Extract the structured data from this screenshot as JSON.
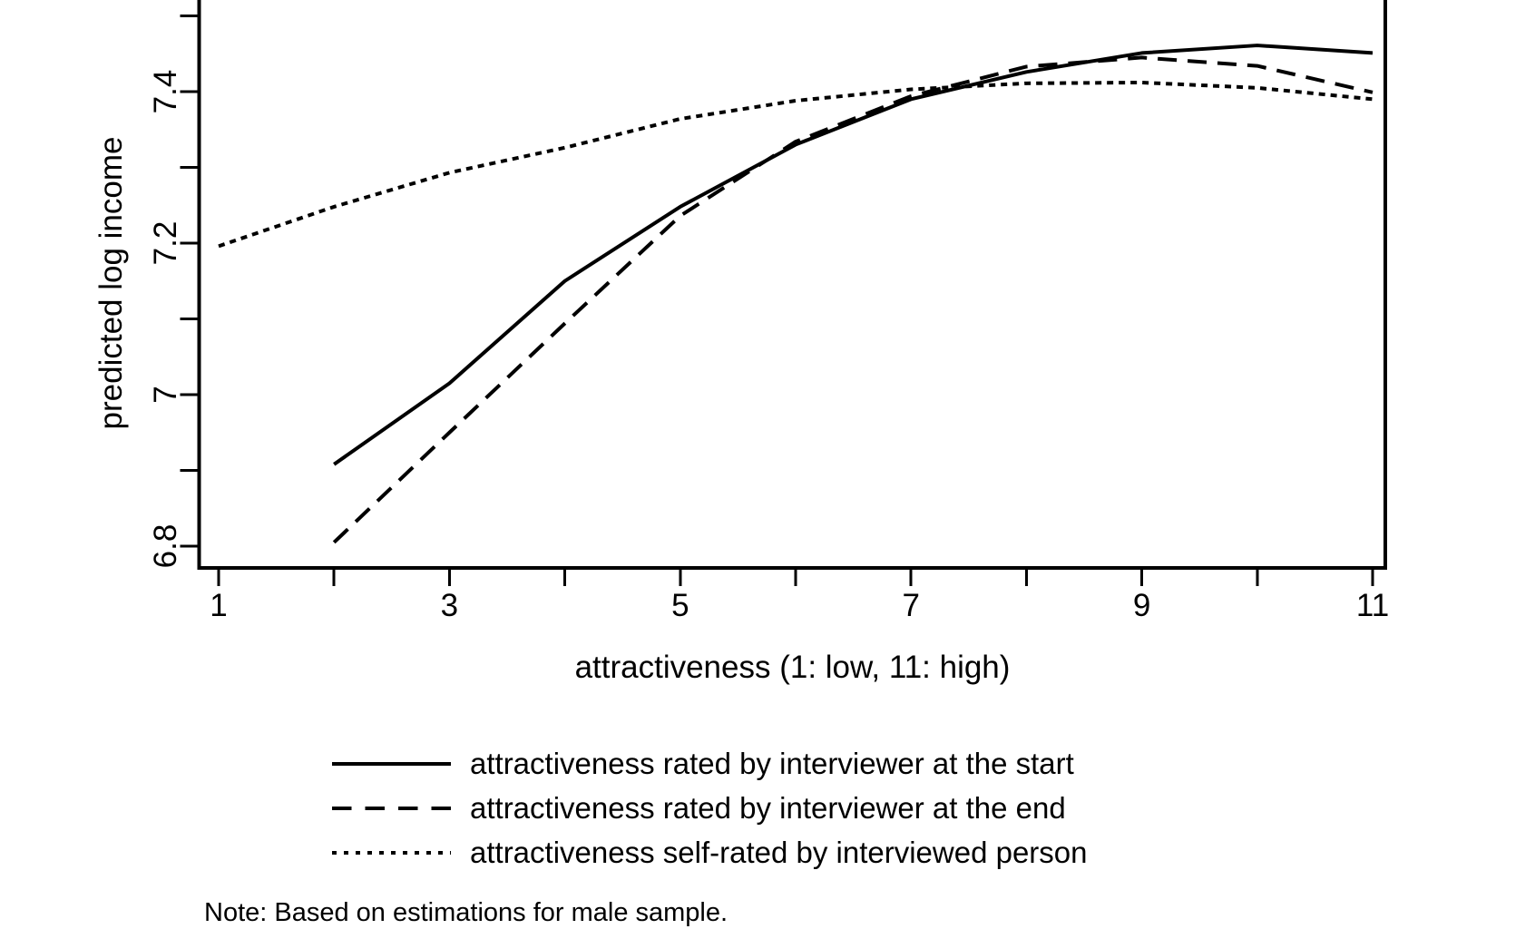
{
  "chart_data": {
    "type": "line",
    "xlabel": "attractiveness (1: low, 11: high)",
    "ylabel": "predicted log income",
    "xlim": [
      1,
      11
    ],
    "ylim": [
      6.63,
      7.52
    ],
    "grid": false,
    "legend_position": "below-plot",
    "x_axis": {
      "ticks": [
        1,
        2,
        3,
        4,
        5,
        6,
        7,
        8,
        9,
        10,
        11
      ],
      "labels": [
        {
          "v": 1,
          "t": "1"
        },
        {
          "v": 3,
          "t": "3"
        },
        {
          "v": 5,
          "t": "5"
        },
        {
          "v": 7,
          "t": "7"
        },
        {
          "v": 9,
          "t": "9"
        },
        {
          "v": 11,
          "t": "11"
        }
      ]
    },
    "y_axis": {
      "ticks": [
        6.8,
        6.9,
        7.0,
        7.1,
        7.2,
        7.3,
        7.4,
        7.5
      ],
      "labels": [
        {
          "v": 6.8,
          "t": "6.8"
        },
        {
          "v": 7.0,
          "t": "7"
        },
        {
          "v": 7.2,
          "t": "7.2"
        },
        {
          "v": 7.4,
          "t": "7.4"
        }
      ]
    },
    "series": [
      {
        "name": "attractiveness rated by interviewer at the start",
        "style": "solid",
        "x": [
          2,
          3,
          4,
          5,
          6,
          7,
          8,
          9,
          10,
          11
        ],
        "y": [
          6.908,
          7.015,
          7.15,
          7.248,
          7.33,
          7.39,
          7.426,
          7.451,
          7.461,
          7.451
        ]
      },
      {
        "name": "attractiveness rated by interviewer at the end",
        "style": "long-dash",
        "x": [
          2,
          3,
          4,
          5,
          6,
          7,
          8,
          9,
          10,
          11
        ],
        "y": [
          6.805,
          6.95,
          7.094,
          7.236,
          7.334,
          7.394,
          7.433,
          7.445,
          7.434,
          7.399
        ]
      },
      {
        "name": "attractiveness self-rated by interviewed person",
        "style": "dotted",
        "x": [
          1,
          2,
          3,
          4,
          5,
          6,
          7,
          8,
          9,
          10,
          11
        ],
        "y": [
          7.196,
          7.248,
          7.293,
          7.326,
          7.364,
          7.388,
          7.403,
          7.411,
          7.412,
          7.405,
          7.39
        ]
      }
    ],
    "note": "Note: Based on estimations for male sample."
  },
  "colors": {
    "ink": "#000000",
    "background": "#ffffff"
  }
}
